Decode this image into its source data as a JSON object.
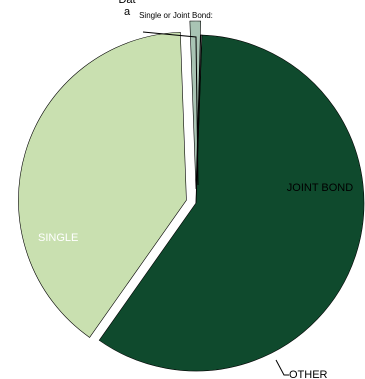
{
  "chart_data": {
    "type": "pie",
    "title": "Single or Joint Bond:",
    "slices": [
      {
        "label": "SINGLE",
        "value": 57.5,
        "color": "#0f4a2d",
        "label_color": "#ffffff"
      },
      {
        "label": "JOINT BOND",
        "value": 38.5,
        "color": "#c9e0b0",
        "label_color": "#000000"
      },
      {
        "label": "OTHER",
        "value": 1.0,
        "color": "#a9c4b4",
        "label_color": "#000000"
      },
      {
        "label": "No\nDat\na",
        "value": 0.1,
        "color": "#ffffff",
        "label_color": "#000000"
      }
    ],
    "legend": "none",
    "exploded": true
  }
}
